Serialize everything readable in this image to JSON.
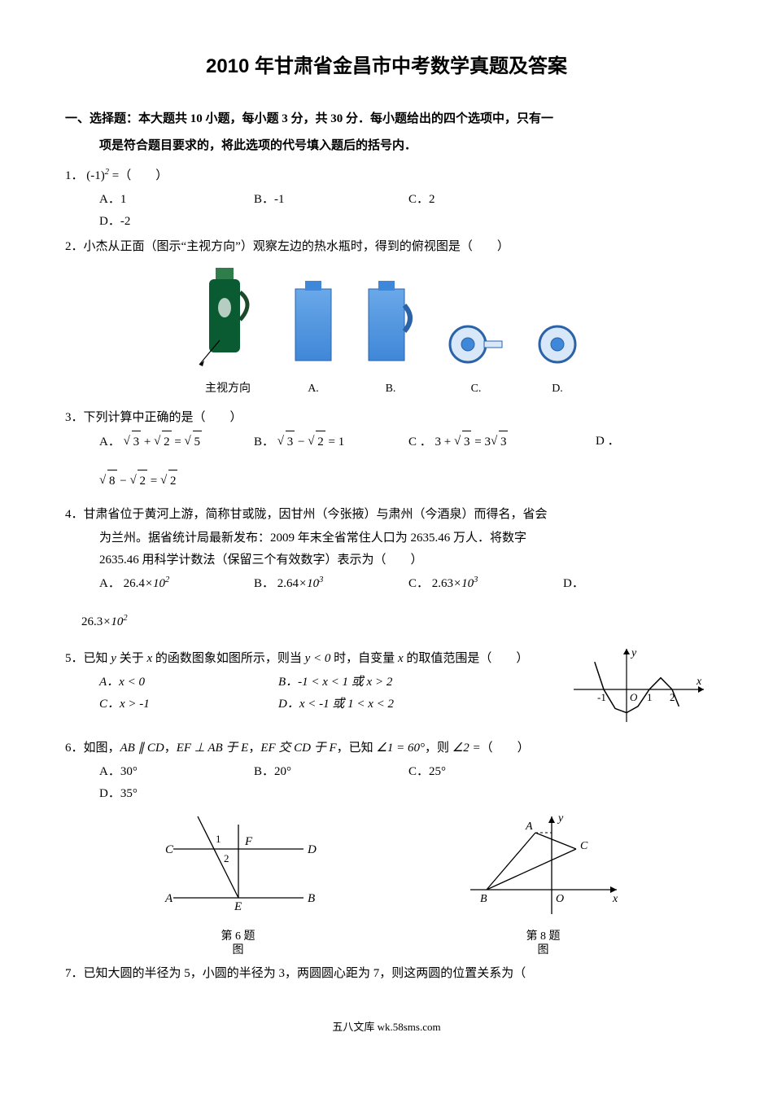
{
  "title": "2010 年甘肃省金昌市中考数学真题及答案",
  "section1": {
    "line1": "一、选择题：本大题共 10 小题，每小题 3 分，共 30 分．每小题给出的四个选项中，只有一",
    "line2": "项是符合题目要求的，将此选项的代号填入题后的括号内．"
  },
  "q1": {
    "stem_pre": "1．",
    "expr_base": "(-1)",
    "expr_sup": "2",
    "stem_post": " =（　　）",
    "opts": {
      "A": "A．1",
      "B": "B．-1",
      "C": "C．2",
      "D": "D．-2"
    }
  },
  "q2": {
    "stem": "2．小杰从正面（图示“主视方向”）观察左边的热水瓶时，得到的俯视图是（　　）",
    "thermos_label": "主视方向",
    "optA": "A.",
    "optB": "B.",
    "optC": "C.",
    "optD": "D.",
    "colors": {
      "bottle_body": "#0a5a32",
      "bottle_cap": "#2e7d4a",
      "blue_a": "#6aa8e8",
      "blue_b": "#3f87d8",
      "ring_stroke": "#3a7ecb",
      "ring_fill": "#d8e8f8"
    }
  },
  "q3": {
    "stem": "3．下列计算中正确的是（　　）",
    "A": {
      "label": "A．",
      "l1": "3",
      "l2": "2",
      "r": "5"
    },
    "B": {
      "label": "B．",
      "l1": "3",
      "l2": "2",
      "r": "1"
    },
    "C": {
      "label": "C ．",
      "text_pre": "3 + ",
      "rad": "3",
      "text_mid": " = 3",
      "rad2": "3"
    },
    "D": {
      "label_top": "D ．",
      "l1": "8",
      "l2": "2",
      "r": "2"
    }
  },
  "q4": {
    "line1": "4．甘肃省位于黄河上游，简称甘或陇，因甘州（今张掖）与肃州（今酒泉）而得名，省会",
    "line2": "为兰州。据省统计局最新发布：2009 年末全省常住人口为 2635.46 万人．将数字",
    "line3": "2635.46 用科学计数法（保留三个有效数字）表示为（　　）",
    "opts": {
      "A": {
        "label": "A．",
        "mant": "26.4",
        "exp": "2"
      },
      "B": {
        "label": "B．",
        "mant": "2.64",
        "exp": "3"
      },
      "C": {
        "label": "C．",
        "mant": "2.63",
        "exp": "3"
      },
      "D_top": "D．",
      "D_bottom": {
        "mant": "26.3",
        "exp": "2"
      }
    }
  },
  "q5": {
    "stem_pre": "5．已知 ",
    "y": "y",
    "mid1": " 关于 ",
    "x": "x",
    "mid2": " 的函数图象如图所示，则当 ",
    "cond": "y < 0",
    "mid3": " 时，自变量 ",
    "x2": "x",
    "tail": " 的取值范围是（　　）",
    "opts": {
      "A": "A．x < 0",
      "B": "B．-1 < x < 1 或 x > 2",
      "C": "C．x > -1",
      "D": "D．x < -1 或 1 < x < 2"
    },
    "chart": {
      "type": "line",
      "xlabel": "x",
      "ylabel": "y",
      "axis_color": "#000000",
      "curve_color": "#000000",
      "curve_width": 1.5,
      "background": "#ffffff",
      "xticks": [
        -1,
        1,
        2
      ],
      "origin_label": "O",
      "points": [
        [
          -1.4,
          1.3
        ],
        [
          -1,
          0
        ],
        [
          -0.5,
          -0.9
        ],
        [
          0,
          -1.1
        ],
        [
          0.5,
          -0.8
        ],
        [
          1,
          0
        ],
        [
          1.5,
          0.55
        ],
        [
          2,
          0
        ],
        [
          2.3,
          -0.8
        ]
      ]
    }
  },
  "q6": {
    "stem_pre": "6．如图，",
    "p1": "AB ∥ CD",
    "c1": "，",
    "p2": "EF ⊥ AB 于 E",
    "c2": "，",
    "p3": "EF 交 CD 于 F",
    "c3": "，已知 ",
    "ang1": "∠1 = 60°",
    "c4": "，则 ",
    "ang2": "∠2 =",
    "tail": "（　　）",
    "opts": {
      "A": "A．30°",
      "B": "B．20°",
      "C": "C．25°",
      "D": "D．35°"
    },
    "fig": {
      "labels": {
        "A": "A",
        "B": "B",
        "C": "C",
        "D": "D",
        "E": "E",
        "F": "F",
        "a1": "1",
        "a2": "2"
      },
      "caption1": "第 6 题",
      "caption2": "图"
    }
  },
  "q8fig": {
    "labels": {
      "A": "A",
      "B": "B",
      "C": "C",
      "O": "O",
      "x": "x",
      "y": "y"
    },
    "caption1": "第 8 题",
    "caption2": "图",
    "axis_color": "#000000"
  },
  "q7": {
    "stem": "7．已知大圆的半径为 5，小圆的半径为 3，两圆圆心距为 7，则这两圆的位置关系为（"
  },
  "footer": "五八文库 wk.58sms.com"
}
